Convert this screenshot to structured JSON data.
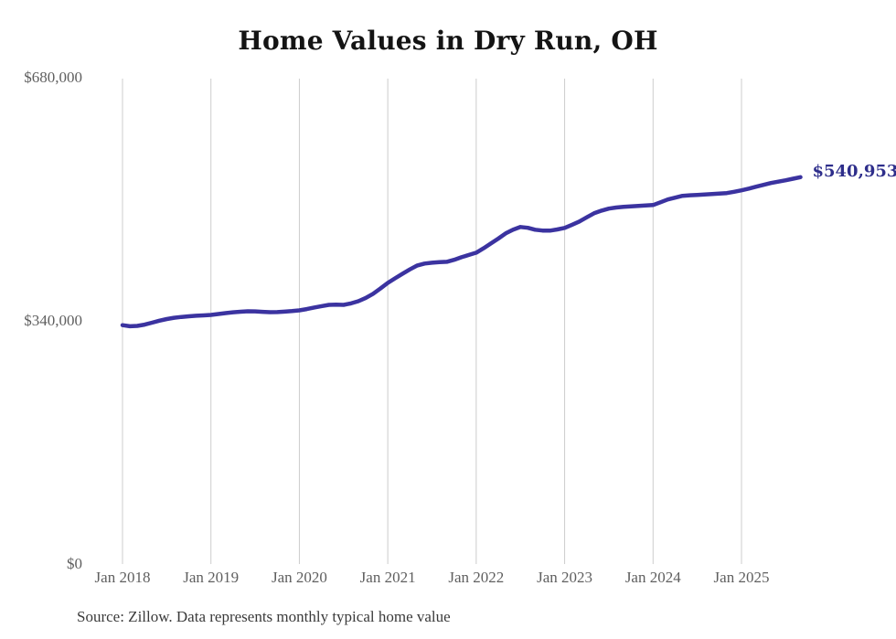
{
  "title": "Home Values in Dry Run, OH",
  "end_label": "$540,953",
  "source_note": "Source: Zillow. Data represents monthly typical home value",
  "colors": {
    "line": "#3b33a0",
    "end_label": "#2e2e8b",
    "grid": "#cccccc",
    "axis_text": "#5f5f5f",
    "title_text": "#141414",
    "source_text": "#3a3a3a",
    "background": "#ffffff"
  },
  "chart_data": {
    "type": "line",
    "title": "Home Values in Dry Run, OH",
    "xlabel": "",
    "ylabel": "",
    "grid": "vertical-only",
    "legend": "none",
    "ylim": [
      0,
      680000
    ],
    "y_ticks": [
      {
        "label": "$680,000",
        "value": 680000
      },
      {
        "label": "$340,000",
        "value": 340000
      },
      {
        "label": "$0",
        "value": 0
      }
    ],
    "x_ticks": [
      {
        "label": "Jan 2018",
        "month_index": 0
      },
      {
        "label": "Jan 2019",
        "month_index": 12
      },
      {
        "label": "Jan 2020",
        "month_index": 24
      },
      {
        "label": "Jan 2021",
        "month_index": 36
      },
      {
        "label": "Jan 2022",
        "month_index": 48
      },
      {
        "label": "Jan 2023",
        "month_index": 60
      },
      {
        "label": "Jan 2024",
        "month_index": 72
      },
      {
        "label": "Jan 2025",
        "month_index": 84
      }
    ],
    "series": [
      {
        "name": "Monthly typical home value",
        "start_month": "2018-01",
        "end_month": "2025-09",
        "interval": "monthly",
        "final_value": 540953,
        "values": [
          334000,
          332500,
          333000,
          334800,
          337500,
          340300,
          342600,
          344300,
          345500,
          346400,
          347100,
          347700,
          348300,
          349600,
          350900,
          352000,
          352800,
          353400,
          353300,
          352700,
          352200,
          352300,
          352900,
          353700,
          354700,
          356500,
          358600,
          360600,
          362400,
          362700,
          362400,
          364400,
          367500,
          372100,
          377800,
          385200,
          393100,
          399600,
          405900,
          412000,
          417500,
          420100,
          421300,
          422000,
          422600,
          425400,
          429000,
          432100,
          435400,
          441500,
          448200,
          455100,
          462300,
          467600,
          471300,
          470100,
          467400,
          466300,
          466100,
          467800,
          470000,
          474300,
          479000,
          484800,
          490500,
          494100,
          496900,
          498500,
          499500,
          500200,
          500700,
          501300,
          502000,
          505800,
          509700,
          512300,
          514800,
          515600,
          516100,
          516800,
          517400,
          518100,
          518700,
          520500,
          522500,
          525000,
          527600,
          530200,
          532700,
          534700,
          536600,
          538800,
          540953
        ]
      }
    ]
  }
}
